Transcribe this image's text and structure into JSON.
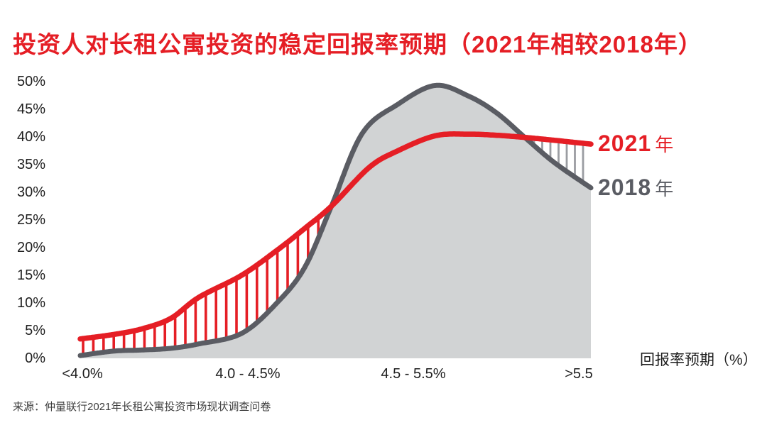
{
  "title": "投资人对长租公寓投资的稳定回报率预期（2021年相较2018年）",
  "source": "来源：仲量联行2021年长租公寓投资市场现状调查问卷",
  "colors": {
    "accent_red": "#E51E25",
    "dark_gray": "#5A5C63",
    "area_fill_gray": "#D1D3D4",
    "hatch_gray": "#9B9DA2",
    "tick_text": "#1F1F1F"
  },
  "legend": [
    {
      "year": "2021",
      "suffix": "年"
    },
    {
      "year": "2018",
      "suffix": "年"
    }
  ],
  "chart_data": {
    "type": "area",
    "title": "投资人对长租公寓投资的稳定回报率预期（2021年相较2018年）",
    "xlabel": "回报率预期（%）",
    "ylabel": "",
    "ylim": [
      0,
      50
    ],
    "grid": false,
    "legend_position": "right",
    "x_tick_labels": [
      "<4.0%",
      "4.0 - 4.5%",
      "4.5 - 5.5%",
      ">5.5"
    ],
    "y_tick_labels": [
      "0%",
      "5%",
      "10%",
      "15%",
      "20%",
      "25%",
      "30%",
      "35%",
      "40%",
      "45%",
      "50%"
    ],
    "series": [
      {
        "name": "2018年",
        "style": "smooth line with filled area",
        "points_x_fraction_y_percent": [
          [
            0.0,
            0.5
          ],
          [
            0.065,
            1.3
          ],
          [
            0.12,
            1.5
          ],
          [
            0.177,
            1.8
          ],
          [
            0.232,
            2.6
          ],
          [
            0.316,
            4.5
          ],
          [
            0.385,
            10.0
          ],
          [
            0.44,
            16.5
          ],
          [
            0.492,
            27.5
          ],
          [
            0.552,
            40.6
          ],
          [
            0.622,
            45.9
          ],
          [
            0.695,
            49.3
          ],
          [
            0.76,
            47.4
          ],
          [
            0.816,
            44.3
          ],
          [
            0.872,
            39.8
          ],
          [
            0.928,
            35.4
          ],
          [
            1.0,
            30.8
          ]
        ]
      },
      {
        "name": "2021年",
        "style": "smooth line",
        "points_x_fraction_y_percent": [
          [
            0.0,
            3.5
          ],
          [
            0.065,
            4.3
          ],
          [
            0.12,
            5.3
          ],
          [
            0.177,
            7.2
          ],
          [
            0.232,
            11.0
          ],
          [
            0.316,
            15.0
          ],
          [
            0.385,
            19.5
          ],
          [
            0.44,
            23.5
          ],
          [
            0.492,
            27.5
          ],
          [
            0.566,
            34.5
          ],
          [
            0.622,
            37.5
          ],
          [
            0.695,
            40.2
          ],
          [
            0.76,
            40.5
          ],
          [
            0.816,
            40.3
          ],
          [
            0.872,
            39.9
          ],
          [
            0.928,
            39.4
          ],
          [
            1.0,
            38.7
          ]
        ]
      }
    ],
    "hatching": [
      {
        "region": "left_where_2021_above_2018",
        "x_fraction_range": [
          0.0,
          0.49
        ],
        "color": "#E51E25"
      },
      {
        "region": "right_where_2021_above_2018",
        "x_fraction_range": [
          0.885,
          1.0
        ],
        "color": "#9B9DA2"
      }
    ]
  }
}
